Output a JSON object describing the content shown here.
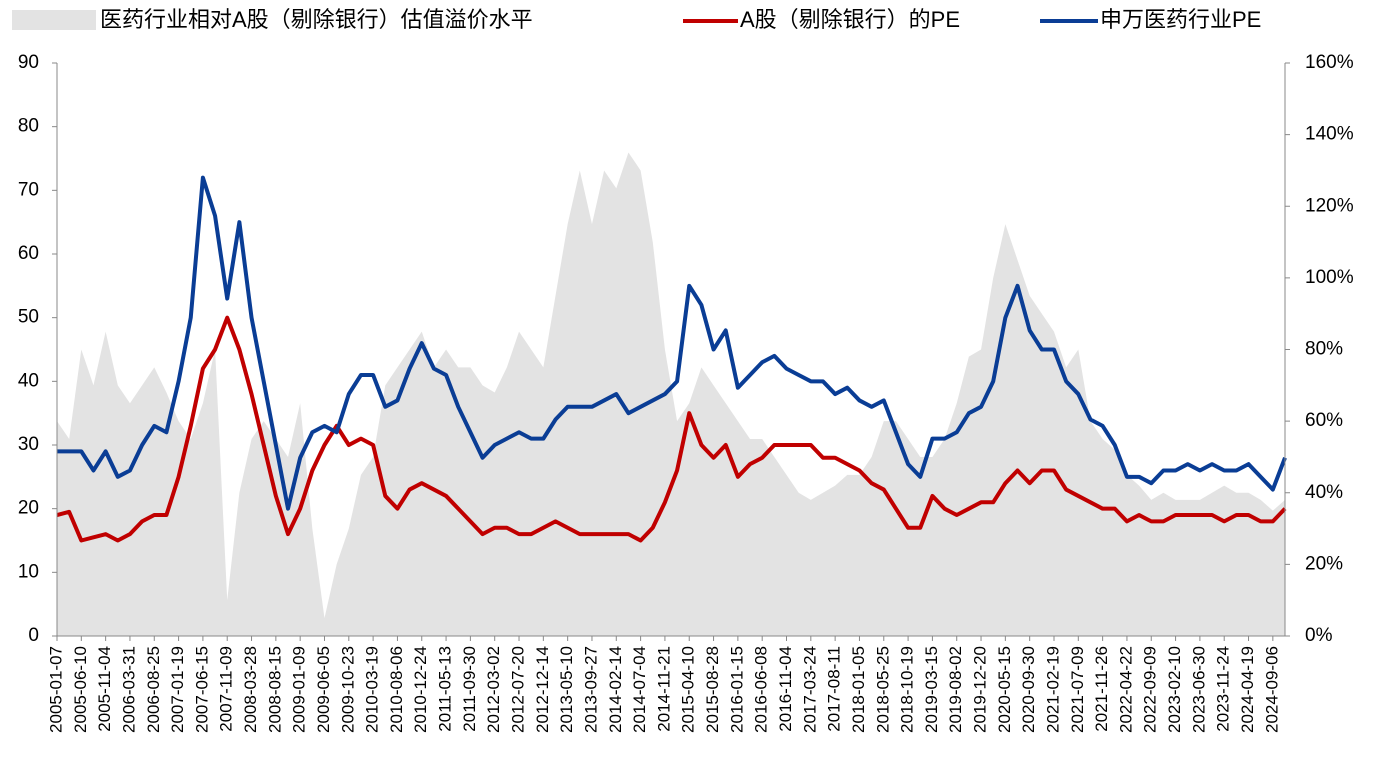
{
  "chart_data": {
    "type": "line",
    "categories": [
      "2005-01-07",
      null,
      "2005-06-10",
      null,
      "2005-11-04",
      null,
      "2006-03-31",
      null,
      "2006-08-25",
      null,
      "2007-01-19",
      null,
      "2007-06-15",
      null,
      "2007-11-09",
      null,
      "2008-03-28",
      null,
      "2008-08-15",
      null,
      "2009-01-09",
      null,
      "2009-06-05",
      null,
      "2009-10-23",
      null,
      "2010-03-19",
      null,
      "2010-08-06",
      null,
      "2010-12-24",
      null,
      "2011-05-13",
      null,
      "2011-09-30",
      null,
      "2012-03-02",
      null,
      "2012-07-20",
      null,
      "2012-12-14",
      null,
      "2013-05-10",
      null,
      "2013-09-27",
      null,
      "2014-02-14",
      null,
      "2014-07-04",
      null,
      "2014-11-21",
      null,
      "2015-04-10",
      null,
      "2015-08-28",
      null,
      "2016-01-15",
      null,
      "2016-06-08",
      null,
      "2016-11-04",
      null,
      "2017-03-24",
      null,
      "2017-08-11",
      null,
      "2018-01-05",
      null,
      "2018-05-25",
      null,
      "2018-10-19",
      null,
      "2019-03-15",
      null,
      "2019-08-02",
      null,
      "2019-12-20",
      null,
      "2020-05-15",
      null,
      "2020-09-30",
      null,
      "2021-02-19",
      null,
      "2021-07-09",
      null,
      "2021-11-26",
      null,
      "2022-04-22",
      null,
      "2022-09-09",
      null,
      "2023-02-10",
      null,
      "2023-06-30",
      null,
      "2023-11-24",
      null,
      "2024-04-19",
      null,
      "2024-09-06",
      null
    ],
    "series": [
      {
        "name": "医药行业相对A股（剔除银行）估值溢价水平",
        "kind": "area",
        "axis": "y2",
        "color": "#e3e3e3",
        "values": [
          60,
          55,
          80,
          70,
          85,
          70,
          65,
          70,
          75,
          68,
          60,
          55,
          65,
          80,
          10,
          40,
          55,
          60,
          55,
          50,
          65,
          30,
          5,
          20,
          30,
          45,
          50,
          70,
          75,
          80,
          85,
          75,
          80,
          75,
          75,
          70,
          68,
          75,
          85,
          80,
          75,
          95,
          115,
          130,
          115,
          130,
          125,
          135,
          130,
          110,
          80,
          60,
          65,
          75,
          70,
          65,
          60,
          55,
          55,
          50,
          45,
          40,
          38,
          40,
          42,
          45,
          45,
          50,
          60,
          60,
          55,
          50,
          50,
          55,
          65,
          78,
          80,
          100,
          115,
          105,
          95,
          90,
          85,
          75,
          80,
          60,
          55,
          52,
          45,
          42,
          38,
          40,
          38,
          38,
          38,
          40,
          42,
          40,
          40,
          38,
          35,
          38
        ]
      },
      {
        "name": "A股（剔除银行）的PE",
        "kind": "line",
        "color": "#c00000",
        "values": [
          19,
          19.5,
          15,
          15.5,
          16,
          15,
          16,
          18,
          19,
          19,
          25,
          33,
          42,
          45,
          50,
          45,
          38,
          30,
          22,
          16,
          20,
          26,
          30,
          33,
          30,
          31,
          30,
          22,
          20,
          23,
          24,
          23,
          22,
          20,
          18,
          16,
          17,
          17,
          16,
          16,
          17,
          18,
          17,
          16,
          16,
          16,
          16,
          16,
          15,
          17,
          21,
          26,
          35,
          30,
          28,
          30,
          25,
          27,
          28,
          30,
          30,
          30,
          30,
          28,
          28,
          27,
          26,
          24,
          23,
          20,
          17,
          17,
          22,
          20,
          19,
          20,
          21,
          21,
          24,
          26,
          24,
          26,
          26,
          23,
          22,
          21,
          20,
          20,
          18,
          19,
          18,
          18,
          19,
          19,
          19,
          19,
          18,
          19,
          19,
          18,
          18,
          20
        ]
      },
      {
        "name": "申万医药行业PE",
        "kind": "line",
        "color": "#0a3d95",
        "values": [
          29,
          29,
          29,
          26,
          29,
          25,
          26,
          30,
          33,
          32,
          40,
          50,
          72,
          66,
          53,
          65,
          50,
          40,
          30,
          20,
          28,
          32,
          33,
          32,
          38,
          41,
          41,
          36,
          37,
          42,
          46,
          42,
          41,
          36,
          32,
          28,
          30,
          31,
          32,
          31,
          31,
          34,
          36,
          36,
          36,
          37,
          38,
          35,
          36,
          37,
          38,
          40,
          55,
          52,
          45,
          48,
          39,
          41,
          43,
          44,
          42,
          41,
          40,
          40,
          38,
          39,
          37,
          36,
          37,
          32,
          27,
          25,
          31,
          31,
          32,
          35,
          36,
          40,
          50,
          55,
          48,
          45,
          45,
          40,
          38,
          34,
          33,
          30,
          25,
          25,
          24,
          26,
          26,
          27,
          26,
          27,
          26,
          26,
          27,
          25,
          23,
          28
        ]
      }
    ],
    "ylim": [
      0,
      90
    ],
    "yticks": [
      0,
      10,
      20,
      30,
      40,
      50,
      60,
      70,
      80,
      90
    ],
    "y2lim": [
      0,
      160
    ],
    "y2ticks": [
      {
        "value": 0,
        "label": "0%"
      },
      {
        "value": 20,
        "label": "20%"
      },
      {
        "value": 40,
        "label": "40%"
      },
      {
        "value": 60,
        "label": "60%"
      },
      {
        "value": 80,
        "label": "80%"
      },
      {
        "value": 100,
        "label": "100%"
      },
      {
        "value": 120,
        "label": "120%"
      },
      {
        "value": 140,
        "label": "140%"
      },
      {
        "value": 160,
        "label": "160%"
      }
    ],
    "legend": "top"
  }
}
